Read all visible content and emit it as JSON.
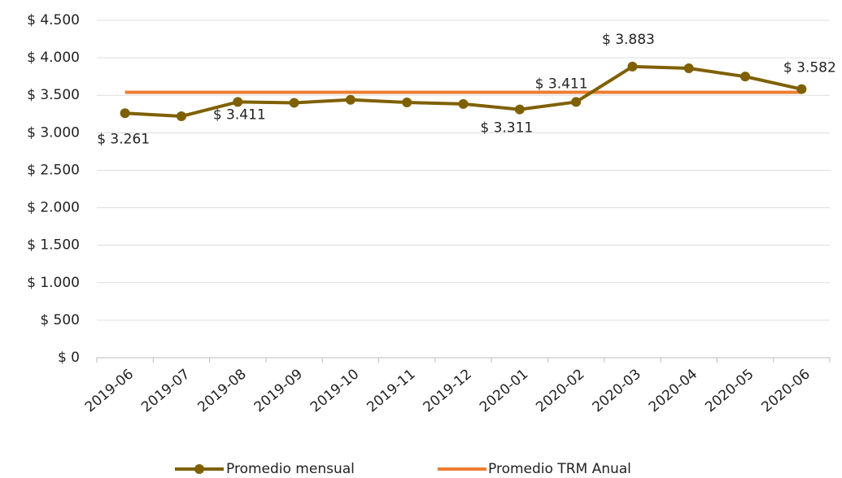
{
  "chart_data": {
    "type": "line",
    "categories": [
      "2019-06",
      "2019-07",
      "2019-08",
      "2019-09",
      "2019-10",
      "2019-11",
      "2019-12",
      "2020-01",
      "2020-02",
      "2020-03",
      "2020-04",
      "2020-05",
      "2020-06"
    ],
    "series": [
      {
        "name": "Promedio mensual",
        "color": "#7f6000",
        "values": [
          3261,
          3220,
          3411,
          3400,
          3440,
          3405,
          3385,
          3311,
          3411,
          3883,
          3860,
          3750,
          3582
        ],
        "value_labels": [
          "$ 3.261",
          null,
          "$ 3.411",
          null,
          null,
          null,
          null,
          "$ 3.311",
          "$ 3.411",
          "$ 3.883",
          null,
          null,
          "$ 3.582"
        ]
      },
      {
        "name": "Promedio TRM Anual",
        "color": "#ed7d31",
        "values": [
          3540,
          3540,
          3540,
          3540,
          3540,
          3540,
          3540,
          3540,
          3540,
          3540,
          3540,
          3540,
          3540
        ]
      }
    ],
    "ylim": [
      0,
      4500
    ],
    "yticks": [
      {
        "value": 0,
        "label": "$ 0"
      },
      {
        "value": 500,
        "label": "$ 500"
      },
      {
        "value": 1000,
        "label": "$ 1.000"
      },
      {
        "value": 1500,
        "label": "$ 1.500"
      },
      {
        "value": 2000,
        "label": "$ 2.000"
      },
      {
        "value": 2500,
        "label": "$ 2.500"
      },
      {
        "value": 3000,
        "label": "$ 3.000"
      },
      {
        "value": 3500,
        "label": "$ 3.500"
      },
      {
        "value": 4000,
        "label": "$ 4.000"
      },
      {
        "value": 4500,
        "label": "$ 4.500"
      }
    ],
    "grid": true,
    "legend": "bottom"
  }
}
